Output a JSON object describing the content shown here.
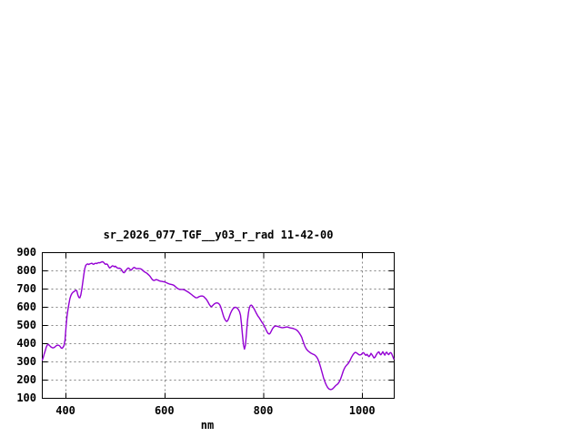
{
  "chart": {
    "title": "sr_2026_077_TGF__y03_r_rad 11-42-00",
    "xlabel": "nm",
    "colors": {
      "line": "#9400D3",
      "grid": "#848484",
      "axis": "#000000",
      "background": "#ffffff",
      "text": "#000000"
    }
  },
  "chart_data": {
    "type": "line",
    "title": "sr_2026_077_TGF__y03_r_rad 11-42-00",
    "xlabel": "nm",
    "ylabel": "",
    "xlim": [
      352,
      1064
    ],
    "ylim": [
      100,
      900
    ],
    "xticks": [
      400,
      600,
      800,
      1000
    ],
    "yticks": [
      100,
      200,
      300,
      400,
      500,
      600,
      700,
      800,
      900
    ],
    "grid": true,
    "legend": "none",
    "line_color": "#9400D3",
    "points": [
      [
        352,
        310
      ],
      [
        354,
        325
      ],
      [
        356,
        345
      ],
      [
        358,
        362
      ],
      [
        360,
        380
      ],
      [
        362,
        392
      ],
      [
        364,
        396
      ],
      [
        366,
        392
      ],
      [
        368,
        386
      ],
      [
        370,
        381
      ],
      [
        372,
        378
      ],
      [
        374,
        377
      ],
      [
        376,
        379
      ],
      [
        378,
        383
      ],
      [
        380,
        388
      ],
      [
        382,
        391
      ],
      [
        384,
        392
      ],
      [
        386,
        390
      ],
      [
        388,
        385
      ],
      [
        390,
        377
      ],
      [
        392,
        374
      ],
      [
        394,
        380
      ],
      [
        396,
        390
      ],
      [
        398,
        420
      ],
      [
        400,
        490
      ],
      [
        402,
        552
      ],
      [
        404,
        590
      ],
      [
        406,
        622
      ],
      [
        408,
        648
      ],
      [
        410,
        665
      ],
      [
        412,
        676
      ],
      [
        414,
        682
      ],
      [
        416,
        686
      ],
      [
        418,
        690
      ],
      [
        420,
        694
      ],
      [
        422,
        690
      ],
      [
        424,
        668
      ],
      [
        426,
        654
      ],
      [
        428,
        652
      ],
      [
        430,
        668
      ],
      [
        432,
        700
      ],
      [
        434,
        740
      ],
      [
        436,
        780
      ],
      [
        438,
        812
      ],
      [
        440,
        830
      ],
      [
        442,
        836
      ],
      [
        444,
        838
      ],
      [
        446,
        835
      ],
      [
        448,
        838
      ],
      [
        450,
        840
      ],
      [
        452,
        842
      ],
      [
        454,
        838
      ],
      [
        456,
        836
      ],
      [
        458,
        840
      ],
      [
        460,
        842
      ],
      [
        462,
        840
      ],
      [
        464,
        843
      ],
      [
        466,
        845
      ],
      [
        468,
        844
      ],
      [
        470,
        846
      ],
      [
        472,
        849
      ],
      [
        474,
        850
      ],
      [
        476,
        847
      ],
      [
        478,
        840
      ],
      [
        480,
        836
      ],
      [
        482,
        838
      ],
      [
        484,
        835
      ],
      [
        486,
        825
      ],
      [
        488,
        816
      ],
      [
        490,
        818
      ],
      [
        492,
        824
      ],
      [
        494,
        828
      ],
      [
        496,
        826
      ],
      [
        498,
        822
      ],
      [
        500,
        826
      ],
      [
        502,
        820
      ],
      [
        504,
        816
      ],
      [
        506,
        814
      ],
      [
        508,
        815
      ],
      [
        510,
        812
      ],
      [
        512,
        808
      ],
      [
        514,
        798
      ],
      [
        516,
        791
      ],
      [
        518,
        790
      ],
      [
        520,
        797
      ],
      [
        522,
        806
      ],
      [
        524,
        812
      ],
      [
        526,
        816
      ],
      [
        528,
        812
      ],
      [
        530,
        806
      ],
      [
        532,
        804
      ],
      [
        534,
        810
      ],
      [
        536,
        816
      ],
      [
        538,
        819
      ],
      [
        540,
        816
      ],
      [
        542,
        812
      ],
      [
        544,
        812
      ],
      [
        546,
        813
      ],
      [
        548,
        812
      ],
      [
        550,
        812
      ],
      [
        552,
        810
      ],
      [
        554,
        806
      ],
      [
        556,
        801
      ],
      [
        558,
        796
      ],
      [
        560,
        792
      ],
      [
        562,
        790
      ],
      [
        564,
        786
      ],
      [
        566,
        781
      ],
      [
        568,
        776
      ],
      [
        570,
        770
      ],
      [
        572,
        762
      ],
      [
        574,
        754
      ],
      [
        576,
        749
      ],
      [
        578,
        747
      ],
      [
        580,
        749
      ],
      [
        582,
        752
      ],
      [
        584,
        751
      ],
      [
        586,
        749
      ],
      [
        588,
        746
      ],
      [
        590,
        744
      ],
      [
        592,
        743
      ],
      [
        594,
        742
      ],
      [
        596,
        741
      ],
      [
        598,
        740
      ],
      [
        600,
        739
      ],
      [
        603,
        735
      ],
      [
        606,
        731
      ],
      [
        609,
        728
      ],
      [
        612,
        726
      ],
      [
        615,
        724
      ],
      [
        618,
        721
      ],
      [
        621,
        714
      ],
      [
        624,
        707
      ],
      [
        627,
        701
      ],
      [
        630,
        698
      ],
      [
        633,
        698
      ],
      [
        636,
        698
      ],
      [
        639,
        696
      ],
      [
        642,
        692
      ],
      [
        645,
        687
      ],
      [
        648,
        682
      ],
      [
        651,
        676
      ],
      [
        654,
        670
      ],
      [
        657,
        663
      ],
      [
        660,
        657
      ],
      [
        663,
        652
      ],
      [
        666,
        653
      ],
      [
        669,
        658
      ],
      [
        672,
        661
      ],
      [
        675,
        662
      ],
      [
        678,
        660
      ],
      [
        681,
        652
      ],
      [
        684,
        643
      ],
      [
        687,
        630
      ],
      [
        690,
        615
      ],
      [
        693,
        604
      ],
      [
        695,
        605
      ],
      [
        697,
        610
      ],
      [
        699,
        616
      ],
      [
        701,
        620
      ],
      [
        703,
        623
      ],
      [
        705,
        624
      ],
      [
        707,
        623
      ],
      [
        709,
        620
      ],
      [
        711,
        614
      ],
      [
        713,
        602
      ],
      [
        715,
        585
      ],
      [
        717,
        566
      ],
      [
        719,
        548
      ],
      [
        721,
        535
      ],
      [
        723,
        527
      ],
      [
        725,
        522
      ],
      [
        727,
        526
      ],
      [
        729,
        537
      ],
      [
        731,
        553
      ],
      [
        733,
        568
      ],
      [
        735,
        580
      ],
      [
        737,
        589
      ],
      [
        739,
        595
      ],
      [
        741,
        599
      ],
      [
        743,
        600
      ],
      [
        745,
        598
      ],
      [
        747,
        594
      ],
      [
        749,
        586
      ],
      [
        751,
        576
      ],
      [
        753,
        556
      ],
      [
        755,
        510
      ],
      [
        757,
        450
      ],
      [
        759,
        395
      ],
      [
        761,
        370
      ],
      [
        763,
        392
      ],
      [
        765,
        455
      ],
      [
        767,
        525
      ],
      [
        769,
        570
      ],
      [
        771,
        597
      ],
      [
        773,
        610
      ],
      [
        775,
        612
      ],
      [
        777,
        607
      ],
      [
        779,
        598
      ],
      [
        781,
        589
      ],
      [
        783,
        578
      ],
      [
        785,
        567
      ],
      [
        787,
        558
      ],
      [
        789,
        549
      ],
      [
        791,
        542
      ],
      [
        793,
        533
      ],
      [
        795,
        524
      ],
      [
        797,
        515
      ],
      [
        799,
        508
      ],
      [
        801,
        498
      ],
      [
        803,
        487
      ],
      [
        805,
        475
      ],
      [
        807,
        464
      ],
      [
        809,
        456
      ],
      [
        811,
        453
      ],
      [
        813,
        457
      ],
      [
        815,
        468
      ],
      [
        817,
        478
      ],
      [
        819,
        487
      ],
      [
        821,
        493
      ],
      [
        823,
        496
      ],
      [
        825,
        497
      ],
      [
        827,
        496
      ],
      [
        829,
        494
      ],
      [
        831,
        492
      ],
      [
        833,
        491
      ],
      [
        835,
        489
      ],
      [
        837,
        488
      ],
      [
        839,
        488
      ],
      [
        841,
        489
      ],
      [
        843,
        490
      ],
      [
        845,
        491
      ],
      [
        847,
        492
      ],
      [
        849,
        491
      ],
      [
        851,
        489
      ],
      [
        853,
        487
      ],
      [
        855,
        486
      ],
      [
        857,
        485
      ],
      [
        859,
        484
      ],
      [
        861,
        482
      ],
      [
        863,
        480
      ],
      [
        865,
        478
      ],
      [
        867,
        474
      ],
      [
        869,
        469
      ],
      [
        871,
        462
      ],
      [
        873,
        454
      ],
      [
        875,
        445
      ],
      [
        877,
        434
      ],
      [
        879,
        418
      ],
      [
        881,
        403
      ],
      [
        883,
        388
      ],
      [
        885,
        377
      ],
      [
        887,
        368
      ],
      [
        889,
        362
      ],
      [
        891,
        357
      ],
      [
        893,
        353
      ],
      [
        895,
        349
      ],
      [
        897,
        346
      ],
      [
        899,
        343
      ],
      [
        901,
        341
      ],
      [
        903,
        338
      ],
      [
        905,
        333
      ],
      [
        907,
        327
      ],
      [
        909,
        318
      ],
      [
        911,
        306
      ],
      [
        913,
        290
      ],
      [
        915,
        272
      ],
      [
        917,
        252
      ],
      [
        919,
        232
      ],
      [
        921,
        212
      ],
      [
        923,
        196
      ],
      [
        925,
        183
      ],
      [
        927,
        171
      ],
      [
        929,
        161
      ],
      [
        931,
        154
      ],
      [
        933,
        150
      ],
      [
        935,
        148
      ],
      [
        937,
        149
      ],
      [
        939,
        151
      ],
      [
        941,
        156
      ],
      [
        943,
        162
      ],
      [
        945,
        168
      ],
      [
        947,
        173
      ],
      [
        949,
        177
      ],
      [
        951,
        183
      ],
      [
        953,
        192
      ],
      [
        955,
        203
      ],
      [
        957,
        217
      ],
      [
        959,
        233
      ],
      [
        961,
        250
      ],
      [
        963,
        263
      ],
      [
        965,
        273
      ],
      [
        967,
        280
      ],
      [
        969,
        286
      ],
      [
        971,
        292
      ],
      [
        973,
        300
      ],
      [
        975,
        310
      ],
      [
        977,
        322
      ],
      [
        979,
        332
      ],
      [
        981,
        341
      ],
      [
        983,
        348
      ],
      [
        985,
        352
      ],
      [
        987,
        351
      ],
      [
        989,
        347
      ],
      [
        991,
        343
      ],
      [
        993,
        339
      ],
      [
        995,
        338
      ],
      [
        997,
        340
      ],
      [
        999,
        346
      ],
      [
        1001,
        351
      ],
      [
        1003,
        348
      ],
      [
        1005,
        340
      ],
      [
        1007,
        336
      ],
      [
        1009,
        342
      ],
      [
        1011,
        334
      ],
      [
        1013,
        329
      ],
      [
        1015,
        336
      ],
      [
        1017,
        347
      ],
      [
        1019,
        340
      ],
      [
        1021,
        331
      ],
      [
        1023,
        322
      ],
      [
        1025,
        325
      ],
      [
        1027,
        335
      ],
      [
        1029,
        345
      ],
      [
        1031,
        352
      ],
      [
        1033,
        355
      ],
      [
        1035,
        344
      ],
      [
        1037,
        339
      ],
      [
        1039,
        347
      ],
      [
        1041,
        356
      ],
      [
        1043,
        345
      ],
      [
        1045,
        337
      ],
      [
        1047,
        350
      ],
      [
        1049,
        353
      ],
      [
        1051,
        344
      ],
      [
        1053,
        340
      ],
      [
        1055,
        349
      ],
      [
        1057,
        351
      ],
      [
        1059,
        344
      ],
      [
        1061,
        330
      ],
      [
        1063,
        316
      ]
    ]
  }
}
